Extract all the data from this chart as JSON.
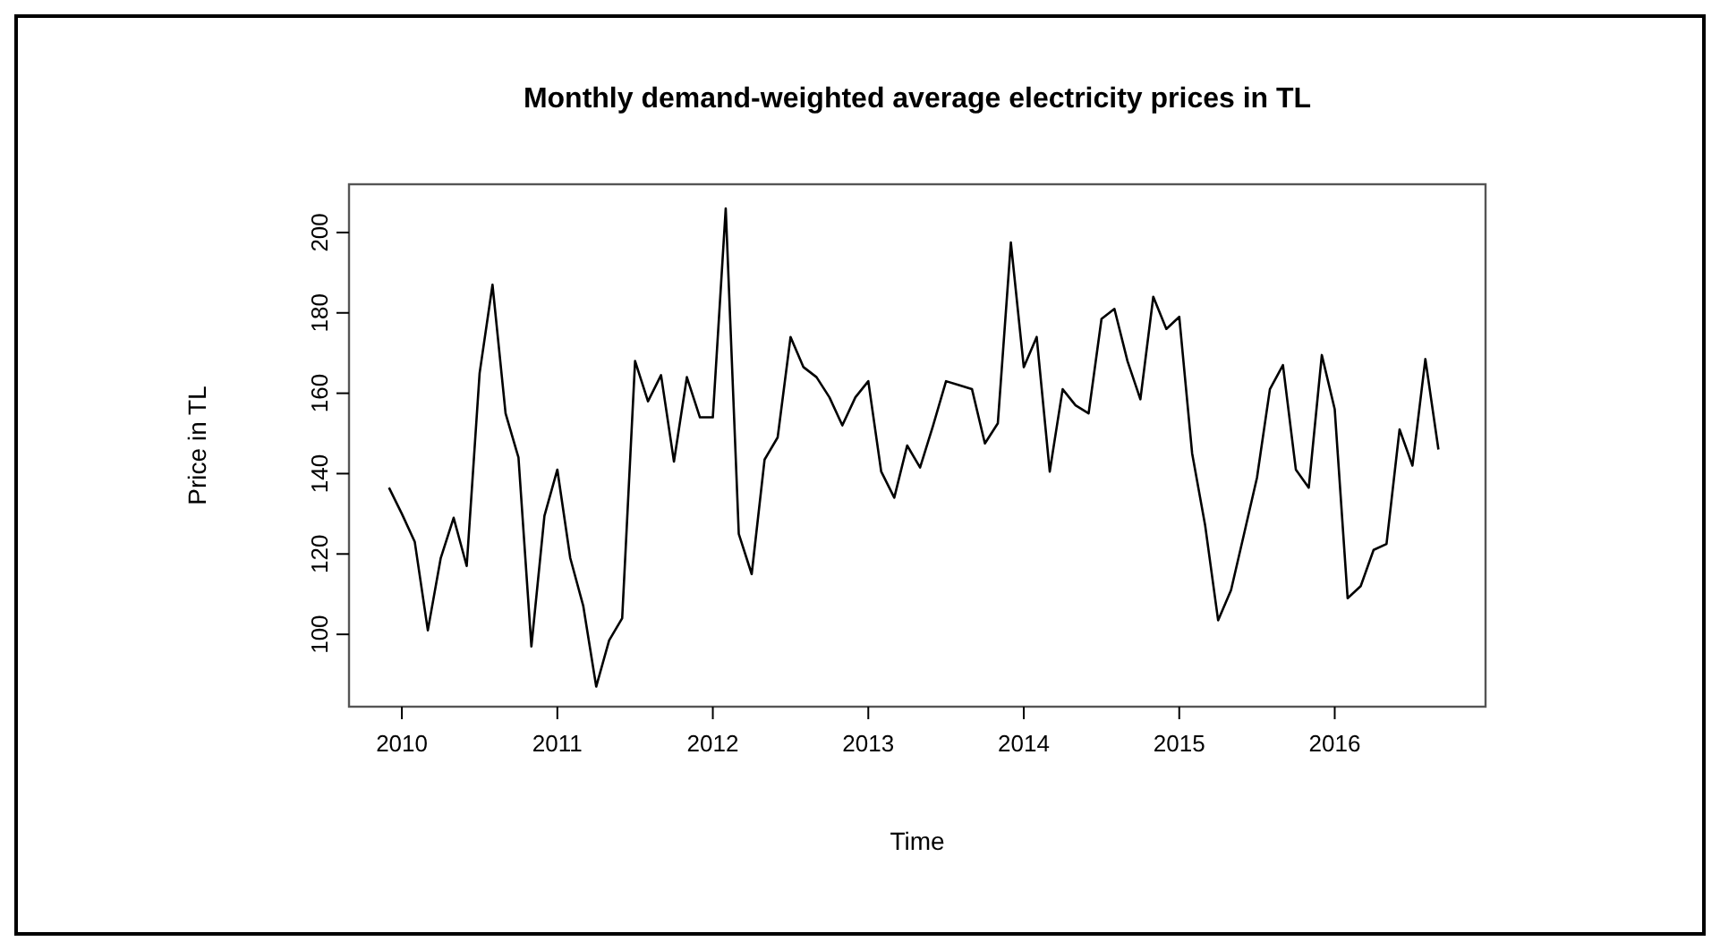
{
  "chart_data": {
    "type": "line",
    "title": "Monthly demand-weighted average electricity prices in TL",
    "xlabel": "Time",
    "ylabel": "Price in TL",
    "x": [
      2009.917,
      2010,
      2010.083,
      2010.167,
      2010.25,
      2010.333,
      2010.417,
      2010.5,
      2010.583,
      2010.667,
      2010.75,
      2010.833,
      2010.917,
      2011,
      2011.083,
      2011.167,
      2011.25,
      2011.333,
      2011.417,
      2011.5,
      2011.583,
      2011.667,
      2011.75,
      2011.833,
      2011.917,
      2012,
      2012.083,
      2012.167,
      2012.25,
      2012.333,
      2012.417,
      2012.5,
      2012.583,
      2012.667,
      2012.75,
      2012.833,
      2012.917,
      2013,
      2013.083,
      2013.167,
      2013.25,
      2013.333,
      2013.417,
      2013.5,
      2013.583,
      2013.667,
      2013.75,
      2013.833,
      2013.917,
      2014,
      2014.083,
      2014.167,
      2014.25,
      2014.333,
      2014.417,
      2014.5,
      2014.583,
      2014.667,
      2014.75,
      2014.833,
      2014.917,
      2015,
      2015.083,
      2015.167,
      2015.25,
      2015.333,
      2015.417,
      2015.5,
      2015.583,
      2015.667,
      2015.75,
      2015.833,
      2015.917,
      2016,
      2016.083,
      2016.167,
      2016.25,
      2016.333,
      2016.417,
      2016.5,
      2016.583,
      2016.667
    ],
    "series": [
      {
        "color": "#000000",
        "values": [
          136.5,
          130,
          123,
          101,
          119,
          129,
          117,
          165,
          187,
          155,
          144,
          97,
          129.5,
          141,
          119,
          107,
          87,
          98.5,
          104,
          168,
          158,
          164.5,
          143,
          164,
          154,
          154,
          206,
          125,
          115,
          143.5,
          149,
          174,
          166.5,
          164,
          159,
          152,
          159,
          163,
          140.5,
          134,
          147,
          141.5,
          152,
          163,
          162,
          161,
          147.5,
          152.5,
          197.5,
          166.5,
          174,
          140.5,
          161,
          157,
          155,
          178.5,
          181,
          168,
          158.5,
          184,
          176,
          179,
          145,
          127,
          103.5,
          111,
          125,
          139,
          161,
          167,
          141,
          136.5,
          169.5,
          156,
          109,
          112,
          121,
          122.5,
          151,
          142,
          168.5,
          146
        ]
      }
    ],
    "xlim": [
      2009.66,
      2016.97
    ],
    "ylim": [
      82,
      212
    ],
    "xticks": [
      2010,
      2011,
      2012,
      2013,
      2014,
      2015,
      2016
    ],
    "yticks": [
      100,
      120,
      140,
      160,
      180,
      200
    ]
  }
}
